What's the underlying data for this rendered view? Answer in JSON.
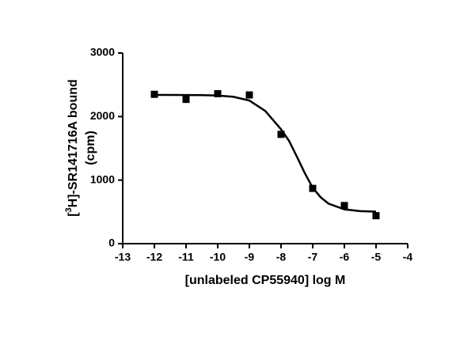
{
  "chart_data": {
    "type": "scatter",
    "x_label": "[unlabeled CP55940] log M",
    "y_label_parts": [
      "[",
      "3",
      "H]-SR141716A bound"
    ],
    "y_label_line2": "(cpm)",
    "xlim": [
      -13,
      -4
    ],
    "xticks": [
      -13,
      -12,
      -11,
      -10,
      -9,
      -8,
      -7,
      -6,
      -5,
      -4
    ],
    "ylim": [
      0,
      3000
    ],
    "yticks": [
      0,
      1000,
      2000,
      3000
    ],
    "series": [
      {
        "kind": "points",
        "color": "#000000",
        "x": [
          -12,
          -11,
          -10,
          -9,
          -8,
          -7,
          -6,
          -5
        ],
        "values": [
          2350,
          2270,
          2360,
          2340,
          1720,
          870,
          600,
          440
        ]
      },
      {
        "kind": "fit",
        "color": "#000000",
        "x": [
          -12,
          -11.5,
          -11,
          -10.5,
          -10,
          -9.5,
          -9,
          -8.5,
          -8,
          -7.75,
          -7.5,
          -7.25,
          -7,
          -6.75,
          -6.5,
          -6,
          -5.5,
          -5
        ],
        "values": [
          2340,
          2340,
          2339,
          2337,
          2331,
          2311,
          2252,
          2089,
          1800,
          1620,
          1370,
          1110,
          880,
          730,
          630,
          540,
          512,
          504
        ]
      }
    ]
  }
}
